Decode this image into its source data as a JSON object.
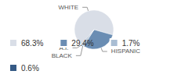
{
  "chart_data": {
    "type": "pie",
    "categories": [
      "WHITE",
      "HISPANIC",
      "BLACK",
      "A.I."
    ],
    "values": [
      68.3,
      29.4,
      1.7,
      0.6
    ],
    "value_labels": [
      "68.3%",
      "29.4%",
      "1.7%",
      "0.6%"
    ],
    "colors": [
      "#d9dee7",
      "#6a8db3",
      "#a9bdd3",
      "#355a85"
    ],
    "legend": "bottom"
  }
}
